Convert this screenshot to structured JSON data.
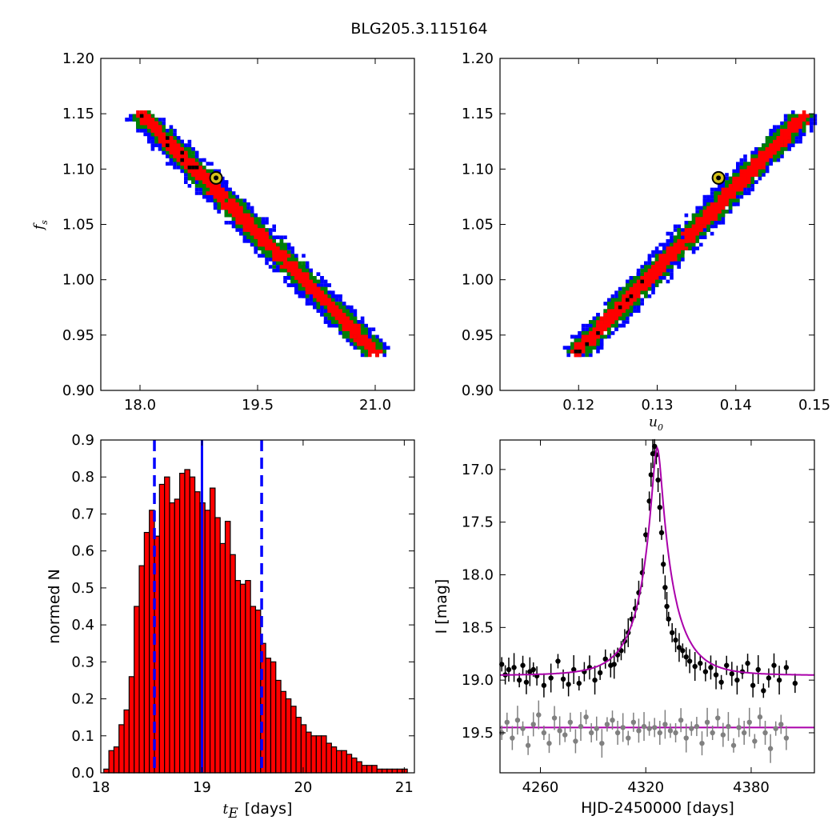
{
  "figure_title": "BLG205.3.115164",
  "colors": {
    "sigma1": "#ff0000",
    "sigma2": "#008000",
    "sigma3": "#0000ff",
    "best_fit_marker": "#d4c21a",
    "hist_bar": "#ff0000",
    "hist_lines": "#0000ff",
    "model_line": "#aa00aa",
    "data_points": "#000000",
    "residual_points": "#808080"
  },
  "chart_data": [
    {
      "type": "heatmap",
      "title": "",
      "xlabel": "",
      "ylabel": "f_s",
      "ylabel_math": "f",
      "ylabel_sub": "s",
      "xlim": [
        17.5,
        21.5
      ],
      "ylim": [
        0.9,
        1.2
      ],
      "xticks": [
        "18.0",
        "19.5",
        "21.0"
      ],
      "xtick_values": [
        18.0,
        19.5,
        21.0
      ],
      "yticks": [
        "0.90",
        "0.95",
        "1.00",
        "1.05",
        "1.10",
        "1.15",
        "1.20"
      ],
      "ytick_values": [
        0.9,
        0.95,
        1.0,
        1.05,
        1.1,
        1.15,
        1.2
      ],
      "best_fit": {
        "x": 18.97,
        "y": 1.092
      },
      "confidence_regions": [
        "1-sigma (red)",
        "2-sigma (green)",
        "3-sigma (blue)"
      ],
      "ridge": {
        "start": [
          18.0,
          1.15
        ],
        "end": [
          21.0,
          0.935
        ]
      },
      "half_width": [
        0.06,
        0.15,
        0.24
      ]
    },
    {
      "type": "heatmap",
      "title": "",
      "xlabel": "u_0",
      "xlabel_math": "u",
      "xlabel_sub": "0",
      "ylabel": "",
      "xlim": [
        0.11,
        0.15
      ],
      "ylim": [
        0.9,
        1.2
      ],
      "xticks": [
        "0.12",
        "0.13",
        "0.14",
        "0.15"
      ],
      "xtick_values": [
        0.12,
        0.13,
        0.14,
        0.15
      ],
      "yticks": [
        "0.90",
        "0.95",
        "1.00",
        "1.05",
        "1.10",
        "1.15",
        "1.20"
      ],
      "ytick_values": [
        0.9,
        0.95,
        1.0,
        1.05,
        1.1,
        1.15,
        1.2
      ],
      "best_fit": {
        "x": 0.1378,
        "y": 1.092
      },
      "confidence_regions": [
        "1-sigma (red)",
        "2-sigma (green)",
        "3-sigma (blue)"
      ],
      "ridge": {
        "start": [
          0.1195,
          0.935
        ],
        "end": [
          0.1485,
          1.15
        ]
      },
      "half_width": [
        0.0006,
        0.0015,
        0.0024
      ]
    },
    {
      "type": "bar",
      "title": "",
      "xlabel": "[days]",
      "xlabel_math": "t",
      "xlabel_sub": "E",
      "ylabel": "normed N",
      "xlim": [
        18.0,
        21.1
      ],
      "ylim": [
        0.0,
        0.9
      ],
      "xticks": [
        "18",
        "19",
        "20",
        "21"
      ],
      "xtick_values": [
        18,
        19,
        20,
        21
      ],
      "yticks": [
        "0.0",
        "0.1",
        "0.2",
        "0.3",
        "0.4",
        "0.5",
        "0.6",
        "0.7",
        "0.8",
        "0.9"
      ],
      "ytick_values": [
        0.0,
        0.1,
        0.2,
        0.3,
        0.4,
        0.5,
        0.6,
        0.7,
        0.8,
        0.9
      ],
      "bin_start": 18.03,
      "bin_width": 0.05,
      "values": [
        0.01,
        0.06,
        0.07,
        0.13,
        0.17,
        0.26,
        0.45,
        0.56,
        0.65,
        0.71,
        0.64,
        0.78,
        0.8,
        0.73,
        0.74,
        0.81,
        0.82,
        0.8,
        0.76,
        0.73,
        0.71,
        0.77,
        0.69,
        0.62,
        0.68,
        0.59,
        0.52,
        0.51,
        0.52,
        0.45,
        0.44,
        0.35,
        0.31,
        0.3,
        0.25,
        0.22,
        0.2,
        0.18,
        0.15,
        0.13,
        0.11,
        0.1,
        0.1,
        0.1,
        0.08,
        0.07,
        0.06,
        0.06,
        0.05,
        0.04,
        0.03,
        0.02,
        0.02,
        0.02,
        0.01,
        0.01,
        0.01,
        0.01,
        0.01,
        0.01
      ],
      "median": 19.0,
      "lower_bound": 18.53,
      "upper_bound": 19.59
    },
    {
      "type": "scatter",
      "title": "",
      "xlabel": "HJD-2450000 [days]",
      "ylabel": "I [mag]",
      "xlim": [
        4237,
        4416
      ],
      "ylim": [
        19.88,
        16.72
      ],
      "y_inverted": true,
      "xticks": [
        "4260",
        "4320",
        "4380"
      ],
      "xtick_values": [
        4260,
        4320,
        4380
      ],
      "yticks": [
        "17.0",
        "17.5",
        "18.0",
        "18.5",
        "19.0",
        "19.5"
      ],
      "ytick_values": [
        17.0,
        17.5,
        18.0,
        18.5,
        19.0,
        19.5
      ],
      "model": {
        "t0": 4326.5,
        "tE": 19.0,
        "u0": 0.1378,
        "baseline": 18.955,
        "peak": 16.72
      },
      "residual_baseline": 19.45,
      "series": [
        {
          "name": "",
          "x": [
            4238,
            4240,
            4242,
            4245,
            4248,
            4250,
            4252,
            4254,
            4256,
            4258,
            4262,
            4266,
            4270,
            4273,
            4276,
            4279,
            4282,
            4285,
            4288,
            4291,
            4294,
            4297,
            4300,
            4302,
            4304,
            4306,
            4308,
            4310,
            4312,
            4314,
            4316,
            4318,
            4320,
            4322,
            4323,
            4324,
            4325,
            4326,
            4327,
            4328,
            4329,
            4330,
            4331,
            4332,
            4333,
            4335,
            4337,
            4339,
            4341,
            4343,
            4345,
            4348,
            4351,
            4354,
            4357,
            4360,
            4363,
            4366,
            4369,
            4372,
            4375,
            4378,
            4381,
            4384,
            4387,
            4390,
            4393,
            4396,
            4400,
            4405
          ],
          "y": [
            18.85,
            18.95,
            18.9,
            18.88,
            19.0,
            18.86,
            19.02,
            18.92,
            18.9,
            18.96,
            19.05,
            18.98,
            18.82,
            18.99,
            19.04,
            18.9,
            19.03,
            18.92,
            18.88,
            19.0,
            18.93,
            18.8,
            18.86,
            18.85,
            18.76,
            18.72,
            18.63,
            18.55,
            18.42,
            18.32,
            18.17,
            17.98,
            17.62,
            17.3,
            17.05,
            16.85,
            16.78,
            16.86,
            17.1,
            17.36,
            17.6,
            17.9,
            18.12,
            18.3,
            18.42,
            18.55,
            18.62,
            18.69,
            18.72,
            18.78,
            18.82,
            18.87,
            18.84,
            18.92,
            18.88,
            18.95,
            19.02,
            18.86,
            18.94,
            19.0,
            18.92,
            18.84,
            19.05,
            18.9,
            19.1,
            18.98,
            18.86,
            19.0,
            18.88,
            19.03
          ]
        },
        {
          "name": "",
          "x": [
            4238,
            4241,
            4244,
            4247,
            4250,
            4253,
            4256,
            4259,
            4262,
            4265,
            4268,
            4271,
            4274,
            4277,
            4280,
            4283,
            4286,
            4289,
            4292,
            4295,
            4298,
            4301,
            4304,
            4307,
            4310,
            4313,
            4316,
            4319,
            4322,
            4325,
            4328,
            4331,
            4334,
            4337,
            4340,
            4343,
            4346,
            4349,
            4352,
            4355,
            4358,
            4361,
            4364,
            4367,
            4370,
            4373,
            4376,
            4379,
            4382,
            4385,
            4388,
            4391,
            4394,
            4397,
            4400
          ],
          "y": [
            19.5,
            19.4,
            19.55,
            19.38,
            19.46,
            19.62,
            19.42,
            19.33,
            19.5,
            19.6,
            19.36,
            19.48,
            19.52,
            19.4,
            19.58,
            19.44,
            19.35,
            19.5,
            19.46,
            19.6,
            19.42,
            19.38,
            19.5,
            19.45,
            19.55,
            19.4,
            19.48,
            19.44,
            19.46,
            19.45,
            19.5,
            19.42,
            19.48,
            19.5,
            19.38,
            19.55,
            19.46,
            19.44,
            19.6,
            19.4,
            19.5,
            19.36,
            19.52,
            19.44,
            19.62,
            19.45,
            19.5,
            19.4,
            19.58,
            19.35,
            19.5,
            19.65,
            19.46,
            19.42,
            19.55
          ]
        }
      ]
    }
  ]
}
